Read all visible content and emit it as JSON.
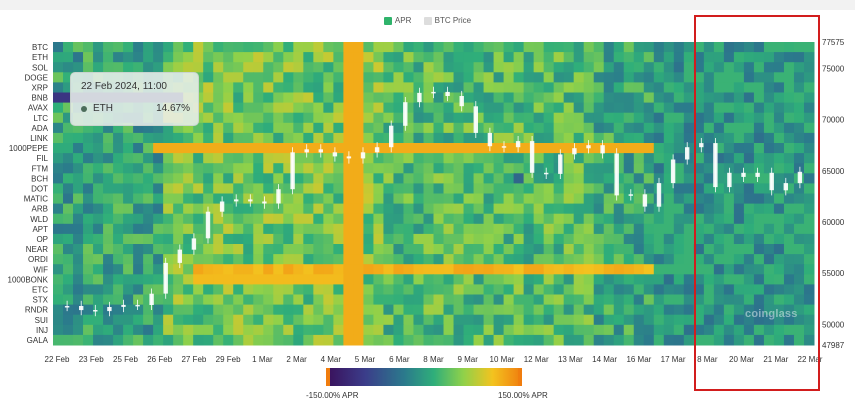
{
  "legend": {
    "apr_label": "APR",
    "btc_label": "BTC Price",
    "apr_color": "#2fb36b",
    "btc_color": "#dddddd"
  },
  "tooltip": {
    "title": "22 Feb 2024, 11:00",
    "asset": "ETH",
    "value": "14.67%"
  },
  "colorbar": {
    "min_label": "-150.00% APR",
    "max_label": "150.00% APR"
  },
  "watermark": "coinglass",
  "chart_data": {
    "type": "heatmap",
    "title": "",
    "series_names": [
      "APR",
      "BTC Price"
    ],
    "assets": [
      "BTC",
      "ETH",
      "SOL",
      "DOGE",
      "XRP",
      "BNB",
      "AVAX",
      "LTC",
      "ADA",
      "LINK",
      "1000PEPE",
      "FIL",
      "FTM",
      "BCH",
      "DOT",
      "MATIC",
      "ARB",
      "WLD",
      "APT",
      "OP",
      "NEAR",
      "ORDI",
      "WIF",
      "1000BONK",
      "ETC",
      "STX",
      "RNDR",
      "SUI",
      "INJ",
      "GALA"
    ],
    "x_labels": [
      "22 Feb",
      "23 Feb",
      "25 Feb",
      "26 Feb",
      "27 Feb",
      "29 Feb",
      "1 Mar",
      "2 Mar",
      "4 Mar",
      "5 Mar",
      "6 Mar",
      "8 Mar",
      "9 Mar",
      "10 Mar",
      "12 Mar",
      "13 Mar",
      "14 Mar",
      "16 Mar",
      "17 Mar",
      "8 Mar",
      "20 Mar",
      "21 Mar",
      "22 Mar"
    ],
    "apr_range": [
      -150,
      150
    ],
    "btc_axis": {
      "ticks": [
        77575,
        75000,
        70000,
        65000,
        60000,
        55000,
        50000,
        47987
      ],
      "min": 47987,
      "max": 77575
    },
    "btc_price": [
      51800,
      51400,
      51300,
      51700,
      51900,
      51900,
      53000,
      56000,
      57300,
      58400,
      61000,
      62000,
      62200,
      62000,
      61800,
      63200,
      66800,
      67100,
      66800,
      66400,
      66200,
      66800,
      67300,
      69400,
      71700,
      72600,
      72700,
      72300,
      71300,
      68700,
      67400,
      67300,
      67900,
      64800,
      64700,
      66600,
      67200,
      67500,
      66700,
      62600,
      62700,
      61500,
      63800,
      66100,
      67300,
      67700,
      63400,
      64800,
      64400,
      64800,
      63100,
      63800,
      64900
    ],
    "highlight_label": ""
  }
}
